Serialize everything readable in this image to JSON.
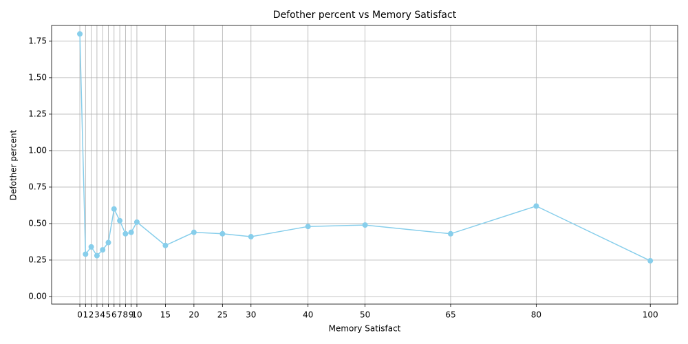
{
  "chart_data": {
    "type": "line",
    "title": "Defother percent vs Memory Satisfact",
    "x_label": "Memory Satisfact",
    "y_label": "Defother percent",
    "x": [
      0,
      1,
      2,
      3,
      4,
      5,
      6,
      7,
      8,
      9,
      10,
      15,
      20,
      25,
      30,
      40,
      50,
      65,
      80,
      100
    ],
    "series": [
      {
        "name": "Defother percent",
        "color": "#87ceeb",
        "values": [
          1.8,
          0.29,
          0.34,
          0.28,
          0.32,
          0.37,
          0.6,
          0.52,
          0.43,
          0.44,
          0.51,
          0.35,
          0.44,
          0.43,
          0.41,
          0.48,
          0.49,
          0.43,
          0.62,
          0.245
        ]
      }
    ],
    "xlim": [
      -4.95,
      104.8
    ],
    "ylim": [
      -0.052,
      1.858
    ],
    "xticks": [
      0,
      1,
      2,
      3,
      4,
      5,
      6,
      7,
      8,
      9,
      10,
      15,
      20,
      25,
      30,
      40,
      50,
      65,
      80,
      100
    ],
    "yticks": [
      {
        "value": 0,
        "label": "0.00"
      },
      {
        "value": 0.25,
        "label": "0.25"
      },
      {
        "value": 0.5,
        "label": "0.50"
      },
      {
        "value": 0.75,
        "label": "0.75"
      },
      {
        "value": 1,
        "label": "1.00"
      },
      {
        "value": 1.25,
        "label": "1.25"
      },
      {
        "value": 1.5,
        "label": "1.50"
      },
      {
        "value": 1.75,
        "label": "1.75"
      }
    ],
    "grid": true
  }
}
